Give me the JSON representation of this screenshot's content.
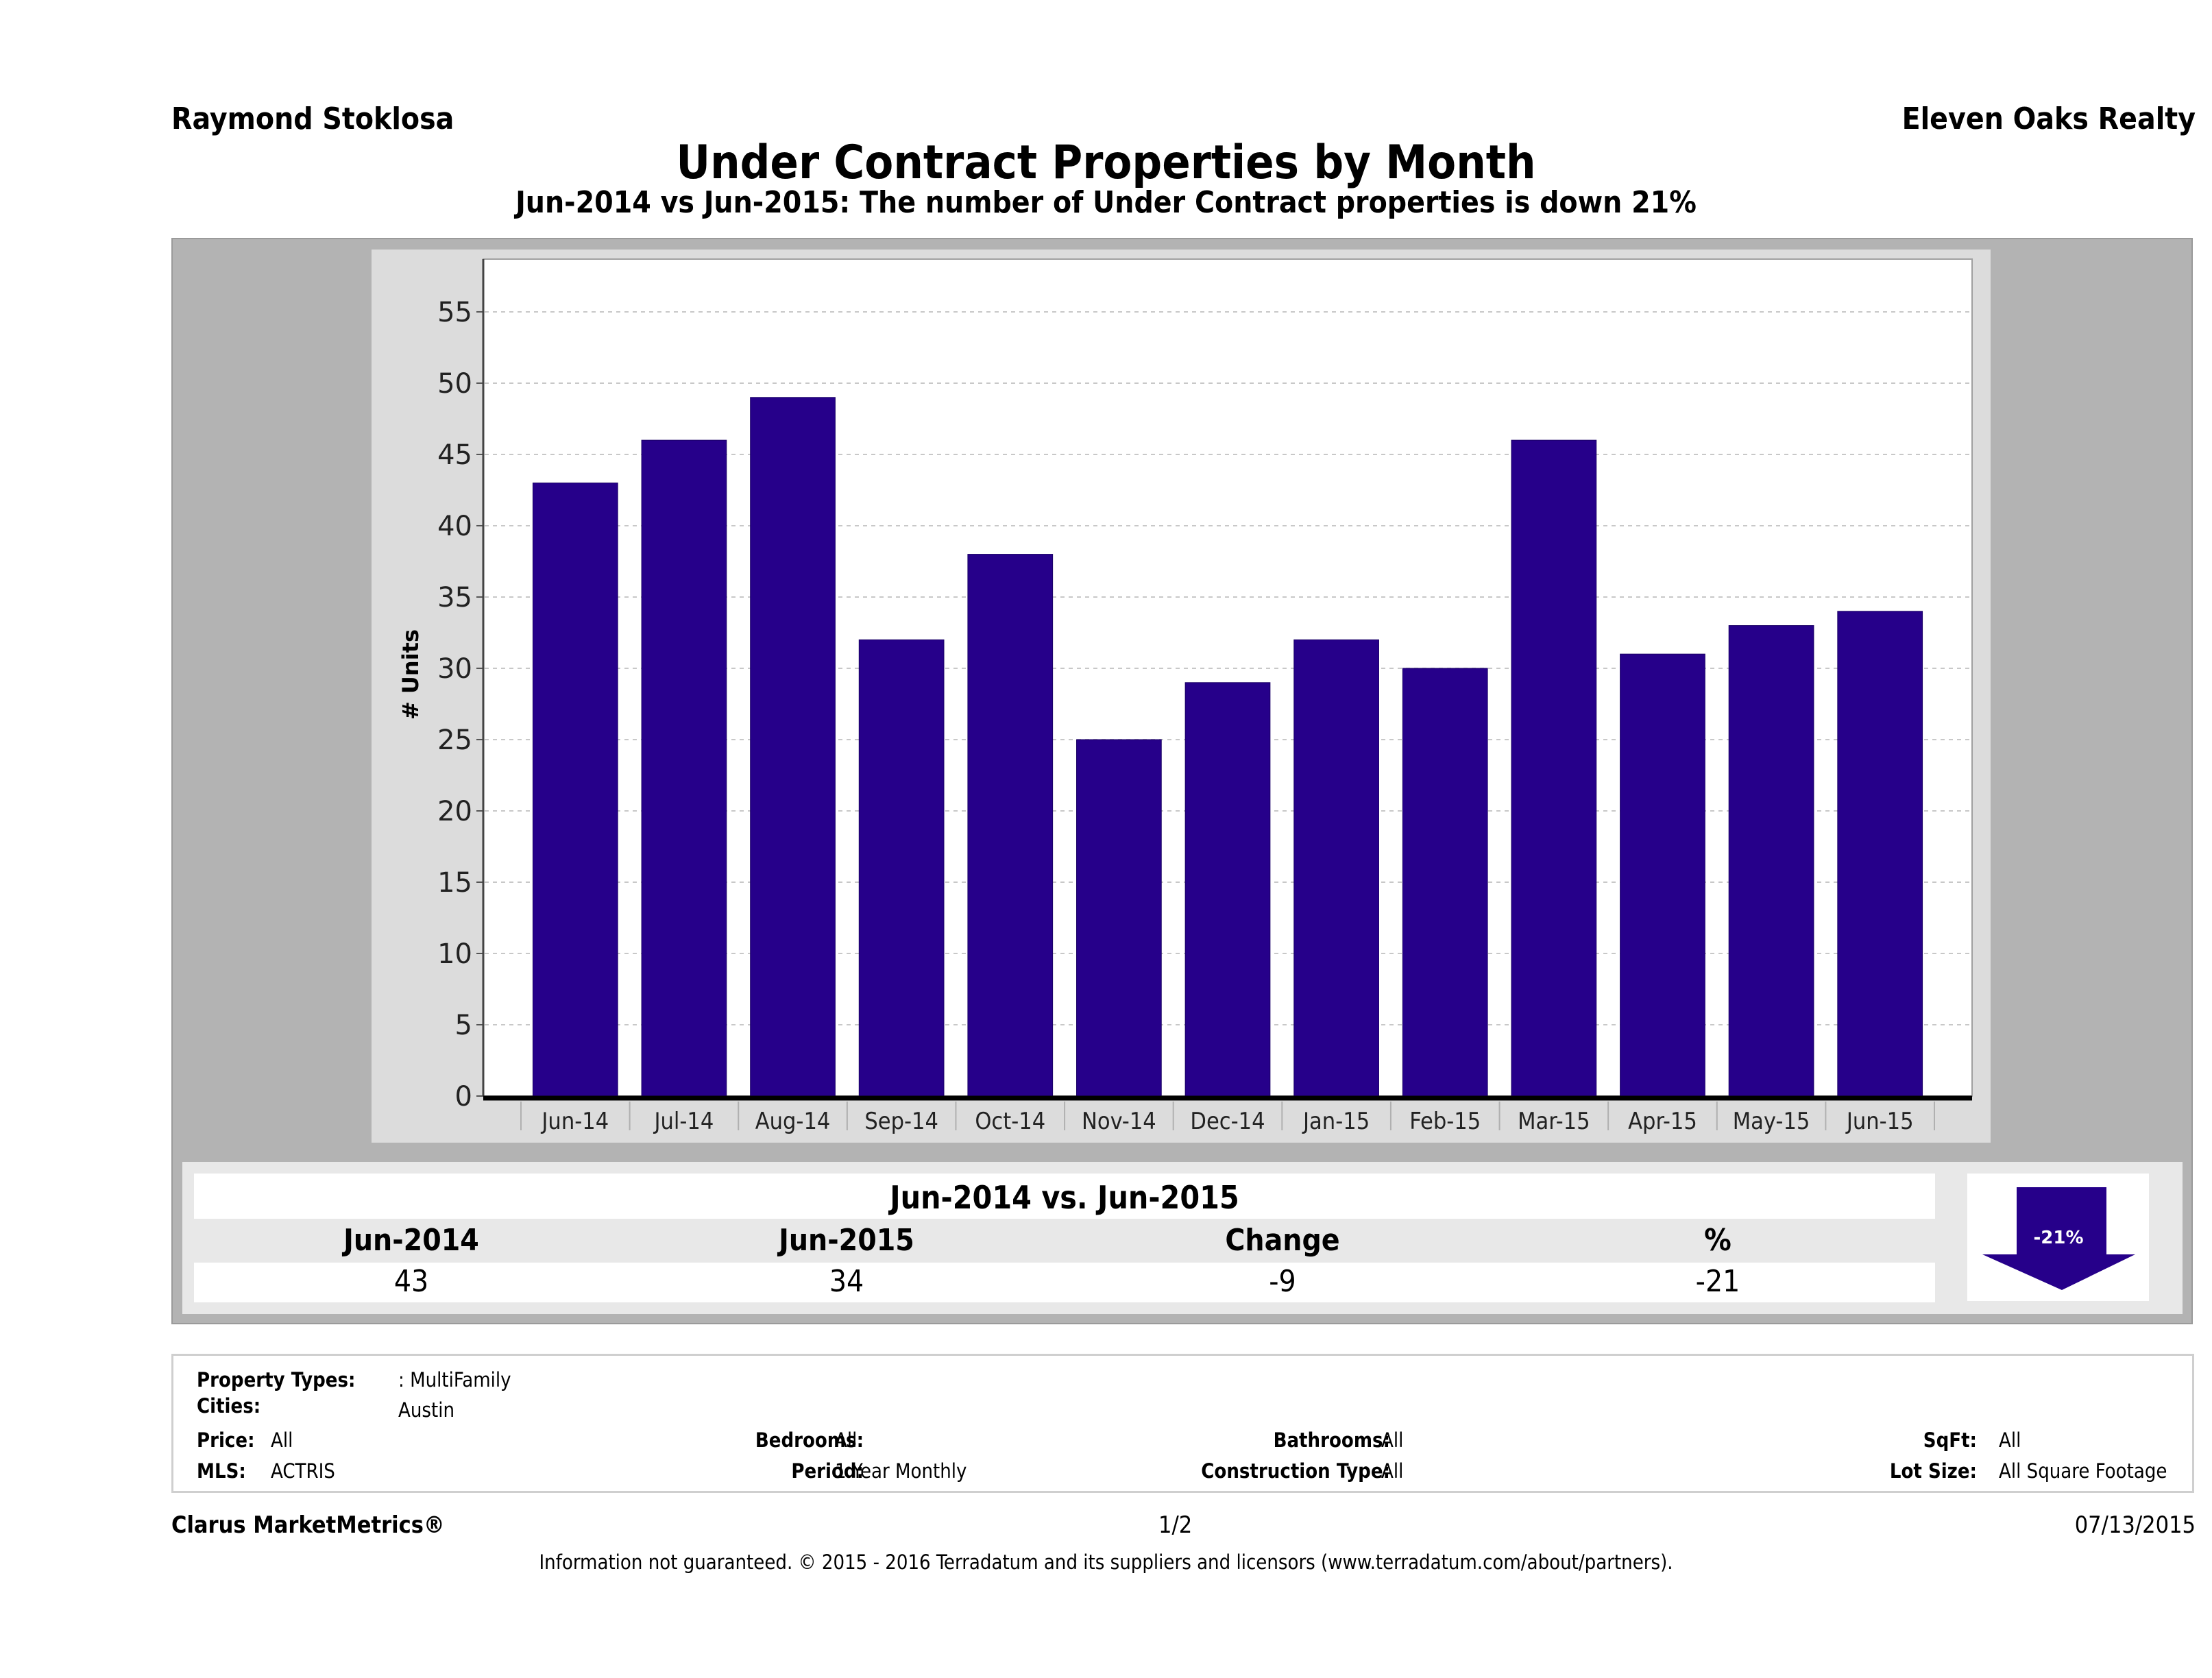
{
  "header": {
    "agent_name": "Raymond Stoklosa",
    "brokerage": "Eleven Oaks Realty",
    "title": "Under Contract Properties by Month",
    "subtitle": "Jun-2014 vs Jun-2015: The number of Under Contract  properties is down 21%"
  },
  "chart_data": {
    "type": "bar",
    "title": "Under Contract Properties by Month",
    "xlabel": "",
    "ylabel": "# Units",
    "categories": [
      "Jun-14",
      "Jul-14",
      "Aug-14",
      "Sep-14",
      "Oct-14",
      "Nov-14",
      "Dec-14",
      "Jan-15",
      "Feb-15",
      "Mar-15",
      "Apr-15",
      "May-15",
      "Jun-15"
    ],
    "values": [
      43,
      46,
      49,
      32,
      38,
      25,
      29,
      32,
      30,
      46,
      31,
      33,
      34
    ],
    "yticks": [
      0,
      5,
      10,
      15,
      20,
      25,
      30,
      35,
      40,
      45,
      50,
      55
    ],
    "ylim": [
      0,
      58.7
    ],
    "grid": true,
    "legend": "none",
    "bar_color": "#26008a"
  },
  "comparison": {
    "title": "Jun-2014 vs. Jun-2015",
    "headers": [
      "Jun-2014",
      "Jun-2015",
      "Change",
      "%"
    ],
    "values": [
      "43",
      "34",
      "-9",
      "-21"
    ],
    "arrow_label": "-21%",
    "arrow_direction": "down",
    "arrow_color": "#26008a"
  },
  "filters": {
    "property_types_label": "Property Types:",
    "property_types_value": ": MultiFamily",
    "cities_label": "Cities:",
    "cities_value": "Austin",
    "price_label": "Price:",
    "price_value": "All",
    "mls_label": "MLS:",
    "mls_value": "ACTRIS",
    "bedrooms_label": "Bedrooms:",
    "bedrooms_value": "All",
    "period_label": "Period:",
    "period_value": "1 Year Monthly",
    "bathrooms_label": "Bathrooms:",
    "bathrooms_value": "All",
    "construction_label": "Construction Type:",
    "construction_value": "All",
    "sqft_label": "SqFt:",
    "sqft_value": "All",
    "lot_size_label": "Lot Size:",
    "lot_size_value": "All Square Footage"
  },
  "footer": {
    "brand": "Clarus MarketMetrics®",
    "page": "1/2",
    "date": "07/13/2015",
    "disclaimer": "Information not guaranteed. © 2015 - 2016 Terradatum and its suppliers and licensors (www.terradatum.com/about/partners)."
  }
}
